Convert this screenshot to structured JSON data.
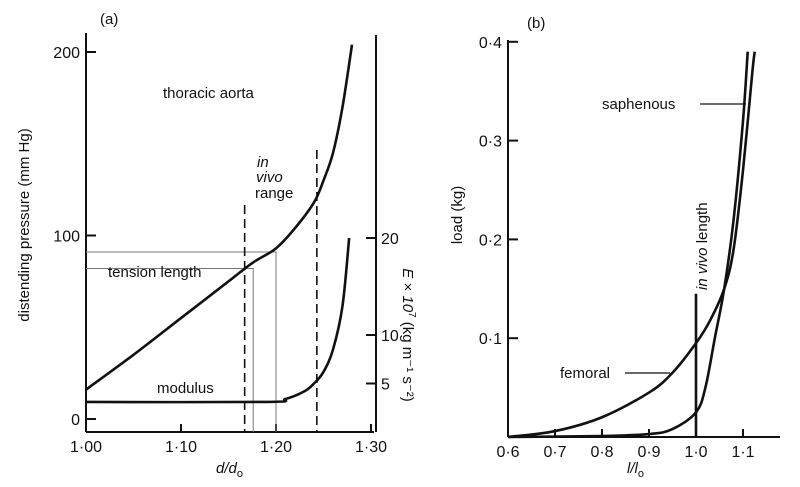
{
  "chart_data": [
    {
      "type": "line",
      "panel_label": "(a)",
      "xlabel_main": "d/d",
      "xlabel_sub": "o",
      "ylabel": "distending pressure (mm Hg)",
      "ylabel_right": "E × 10",
      "ylabel_right_exp": "7",
      "ylabel_right_units": " (kg m⁻¹ s⁻²)",
      "xlim": [
        1.0,
        1.3
      ],
      "ylim": [
        0,
        210
      ],
      "ylim_right": [
        0,
        41
      ],
      "x_ticks": [
        {
          "v": 1.0,
          "label": "1·00"
        },
        {
          "v": 1.1,
          "label": "1·10"
        },
        {
          "v": 1.2,
          "label": "1·20"
        },
        {
          "v": 1.3,
          "label": "1·30"
        }
      ],
      "y_ticks": [
        {
          "v": 0,
          "label": "0"
        },
        {
          "v": 100,
          "label": "100"
        },
        {
          "v": 200,
          "label": "200"
        }
      ],
      "y_ticks_right": [
        {
          "v": 5,
          "label": "5"
        },
        {
          "v": 10,
          "label": "10"
        },
        {
          "v": 20,
          "label": "20"
        }
      ],
      "series": [
        {
          "name": "thoracic aorta",
          "axis": "left",
          "x": [
            1.0,
            1.05,
            1.1,
            1.15,
            1.175,
            1.2,
            1.22,
            1.24,
            1.25,
            1.26,
            1.27,
            1.28
          ],
          "y": [
            16,
            35,
            55,
            75,
            85,
            93,
            104,
            118,
            130,
            145,
            170,
            204
          ]
        },
        {
          "name": "modulus",
          "axis": "right",
          "x": [
            1.0,
            1.19,
            1.21,
            1.23,
            1.24,
            1.25,
            1.26,
            1.27,
            1.277
          ],
          "y": [
            3.1,
            3.1,
            3.4,
            4.2,
            5,
            6.2,
            8.5,
            13,
            20
          ]
        }
      ],
      "in_vivo_range": [
        1.167,
        1.243
      ],
      "tension_length_marks": [
        {
          "x": 1.176,
          "y": 82
        },
        {
          "x": 1.2,
          "y": 91
        }
      ],
      "annotations": {
        "thoracic": "thoracic aorta",
        "in": "in",
        "vivo": "vivo",
        "range": "range",
        "tension": "tension length",
        "modulus": "modulus"
      }
    },
    {
      "type": "line",
      "panel_label": "(b)",
      "xlabel_main": "l/l",
      "xlabel_sub": "o",
      "ylabel": "load (kg)",
      "xlim": [
        0.6,
        1.17
      ],
      "ylim": [
        0,
        0.4
      ],
      "x_ticks": [
        {
          "v": 0.6,
          "label": "0·6"
        },
        {
          "v": 0.7,
          "label": "0·7"
        },
        {
          "v": 0.8,
          "label": "0·8"
        },
        {
          "v": 0.9,
          "label": "0·9"
        },
        {
          "v": 1.0,
          "label": "1·0"
        },
        {
          "v": 1.1,
          "label": "1·1"
        }
      ],
      "y_ticks": [
        {
          "v": 0.1,
          "label": "0·1"
        },
        {
          "v": 0.2,
          "label": "0·2"
        },
        {
          "v": 0.3,
          "label": "0·3"
        },
        {
          "v": 0.4,
          "label": "0·4"
        }
      ],
      "series": [
        {
          "name": "femoral",
          "x": [
            0.6,
            0.7,
            0.8,
            0.9,
            0.95,
            1.0,
            1.03,
            1.06,
            1.08,
            1.1,
            1.12,
            1.125
          ],
          "y": [
            0,
            0.006,
            0.02,
            0.045,
            0.065,
            0.095,
            0.118,
            0.15,
            0.19,
            0.27,
            0.37,
            0.39
          ]
        },
        {
          "name": "saphenous",
          "x": [
            0.6,
            0.8,
            0.9,
            0.95,
            1.0,
            1.02,
            1.04,
            1.06,
            1.08,
            1.1,
            1.11
          ],
          "y": [
            0,
            0.001,
            0.003,
            0.008,
            0.025,
            0.05,
            0.1,
            0.15,
            0.22,
            0.32,
            0.39
          ]
        }
      ],
      "in_vivo_length": {
        "x": 1.0,
        "ymax": 0.145,
        "label_italic": "in vivo",
        "label_rest": " length"
      },
      "annotations": {
        "saphenous": "saphenous",
        "femoral": "femoral"
      }
    }
  ]
}
